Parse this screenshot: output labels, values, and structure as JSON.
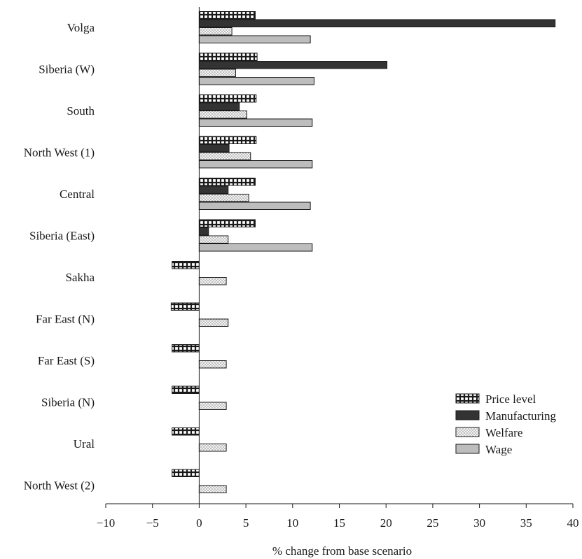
{
  "chart_data": {
    "type": "bar",
    "orientation": "horizontal",
    "categories": [
      "Volga",
      "Siberia (W)",
      "South",
      "North West (1)",
      "Central",
      "Siberia (East)",
      "Sakha",
      "Far East (N)",
      "Far East (S)",
      "Siberia (N)",
      "Ural",
      "North West (2)"
    ],
    "series": [
      {
        "name": "Price level",
        "pattern": "grid",
        "color": "#2a2a2a",
        "values": [
          6.0,
          6.2,
          6.1,
          6.1,
          6.0,
          6.0,
          -2.9,
          -3.0,
          -2.9,
          -2.9,
          -2.9,
          -2.9
        ]
      },
      {
        "name": "Manufacturing",
        "pattern": "solid",
        "color": "#333333",
        "values": [
          38.1,
          20.1,
          4.3,
          3.2,
          3.1,
          1.0,
          null,
          null,
          null,
          null,
          null,
          null
        ]
      },
      {
        "name": "Welfare",
        "pattern": "dots",
        "color": "#f2f2f2",
        "values": [
          3.5,
          3.9,
          5.1,
          5.5,
          5.3,
          3.1,
          2.9,
          3.1,
          2.9,
          2.9,
          2.9,
          2.9
        ]
      },
      {
        "name": "Wage",
        "pattern": "solid-light",
        "color": "#bdbdbd",
        "values": [
          11.9,
          12.3,
          12.1,
          12.1,
          11.9,
          12.1,
          null,
          null,
          null,
          null,
          null,
          null
        ]
      }
    ],
    "xlabel": "% change from base scenario",
    "ylabel": "",
    "title": "",
    "xlim": [
      -10,
      40
    ],
    "xticks": [
      -10,
      -5,
      0,
      5,
      10,
      15,
      20,
      25,
      30,
      35,
      40
    ],
    "xtick_labels": [
      "−10",
      "−5",
      "0",
      "5",
      "10",
      "15",
      "20",
      "25",
      "30",
      "35",
      "40"
    ],
    "grid": false,
    "legend_position": "bottom-right"
  }
}
